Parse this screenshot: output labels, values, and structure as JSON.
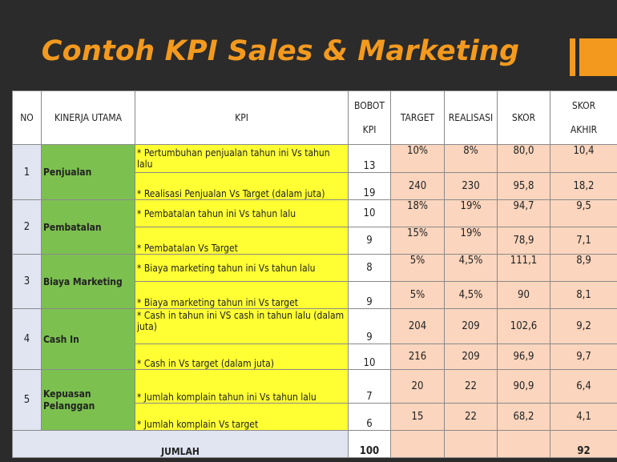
{
  "slide": {
    "title": "Contoh KPI Sales & Marketing",
    "accent_color": "#f39a1e"
  },
  "table": {
    "headers": {
      "no": "NO",
      "kinerja": "KINERJA UTAMA",
      "kpi": "KPI",
      "bobot_1": "BOBOT",
      "bobot_2": "KPI",
      "target": "TARGET",
      "realisasi": "REALISASI",
      "skor": "SKOR",
      "skor_akhir_1": "SKOR",
      "skor_akhir_2": "AKHIR"
    },
    "groups": [
      {
        "no": "1",
        "kinerja": "Penjualan",
        "rows": [
          {
            "kpi": "* Pertumbuhan penjualan tahun ini Vs tahun lalu",
            "bobot": "13",
            "target": "10%",
            "realisasi": "8%",
            "skor": "80,0",
            "akhir": "10,4"
          },
          {
            "kpi": "* Realisasi Penjualan Vs Target (dalam juta)",
            "bobot": "19",
            "target": "240",
            "realisasi": "230",
            "skor": "95,8",
            "akhir": "18,2"
          }
        ]
      },
      {
        "no": "2",
        "kinerja": "Pembatalan",
        "rows": [
          {
            "kpi": "* Pembatalan tahun ini Vs tahun lalu",
            "bobot": "10",
            "target": "18%",
            "realisasi": "19%",
            "skor": "94,7",
            "akhir": "9,5"
          },
          {
            "kpi": "* Pembatalan Vs Target",
            "bobot": "9",
            "target": "15%",
            "realisasi": "19%",
            "skor": "78,9",
            "akhir": "7,1"
          }
        ]
      },
      {
        "no": "3",
        "kinerja": "Biaya Marketing",
        "rows": [
          {
            "kpi": "* Biaya marketing tahun ini Vs tahun lalu",
            "bobot": "8",
            "target": "5%",
            "realisasi": "4,5%",
            "skor": "111,1",
            "akhir": "8,9"
          },
          {
            "kpi": "* Biaya marketing tahun ini Vs target",
            "bobot": "9",
            "target": "5%",
            "realisasi": "4,5%",
            "skor": "90",
            "akhir": "8,1"
          }
        ]
      },
      {
        "no": "4",
        "kinerja": "Cash In",
        "rows": [
          {
            "kpi": "* Cash in tahun ini VS cash in tahun lalu (dalam juta)",
            "bobot": "9",
            "target": "204",
            "realisasi": "209",
            "skor": "102,6",
            "akhir": "9,2"
          },
          {
            "kpi": "* Cash in Vs target (dalam juta)",
            "bobot": "10",
            "target": "216",
            "realisasi": "209",
            "skor": "96,9",
            "akhir": "9,7"
          }
        ]
      },
      {
        "no": "5",
        "kinerja": "Kepuasan Pelanggan",
        "rows": [
          {
            "kpi": "* Jumlah komplain tahun ini Vs tahun lalu",
            "bobot": "7",
            "target": "20",
            "realisasi": "22",
            "skor": "90,9",
            "akhir": "6,4"
          },
          {
            "kpi": "* Jumlah komplain Vs target",
            "bobot": "6",
            "target": "15",
            "realisasi": "22",
            "skor": "68,2",
            "akhir": "4,1"
          }
        ]
      }
    ],
    "total": {
      "label": "JUMLAH",
      "bobot": "100",
      "akhir": "92"
    }
  }
}
